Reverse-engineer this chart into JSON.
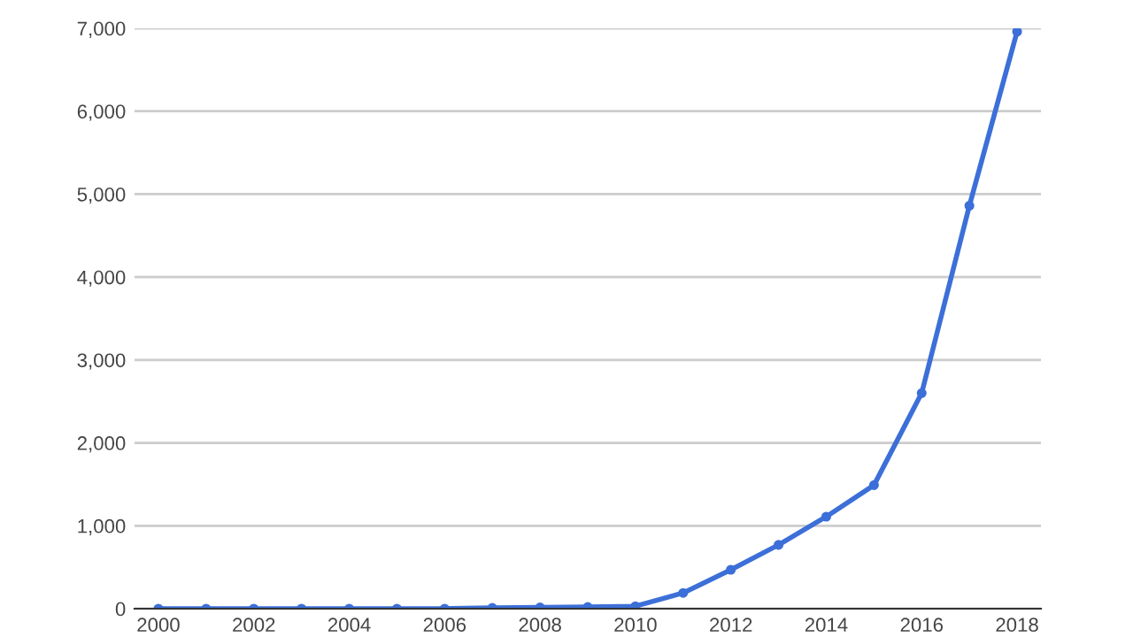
{
  "chart_data": {
    "type": "line",
    "x": [
      2000,
      2001,
      2002,
      2003,
      2004,
      2005,
      2006,
      2007,
      2008,
      2009,
      2010,
      2011,
      2012,
      2013,
      2014,
      2015,
      2016,
      2017,
      2018
    ],
    "series": [
      {
        "color": "#3c6fd8",
        "values": [
          0,
          0,
          0,
          0,
          0,
          0,
          0,
          10,
          15,
          20,
          30,
          190,
          470,
          770,
          1110,
          1490,
          2600,
          4860,
          6960
        ]
      }
    ],
    "xlim": [
      1999.5,
      2018.5
    ],
    "xticks": [
      2000,
      2002,
      2004,
      2006,
      2008,
      2010,
      2012,
      2014,
      2016,
      2018
    ],
    "ylim": [
      0,
      7000
    ],
    "yticks": [
      {
        "value": 0,
        "label": "0"
      },
      {
        "value": 1000,
        "label": "1,000"
      },
      {
        "value": 2000,
        "label": "2,000"
      },
      {
        "value": 3000,
        "label": "3,000"
      },
      {
        "value": 4000,
        "label": "4,000"
      },
      {
        "value": 5000,
        "label": "5,000"
      },
      {
        "value": 6000,
        "label": "6,000"
      },
      {
        "value": 7000,
        "label": "7,000"
      }
    ],
    "grid": "y",
    "marker": "circle",
    "line_style": "solid"
  }
}
